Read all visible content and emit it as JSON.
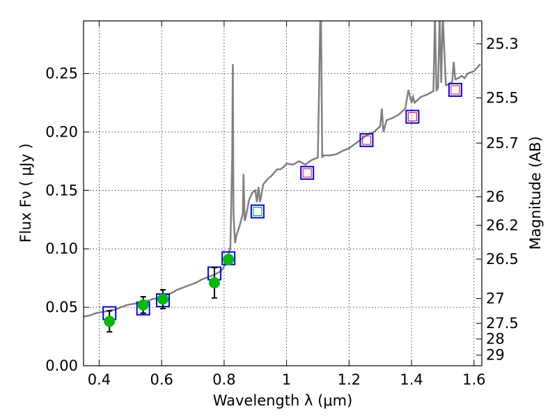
{
  "chart_data": {
    "type": "scatter",
    "xlabel": "Wavelength  λ (μm)",
    "ylabel": "Flux  Fν  ( μJy )",
    "ylabel_right": "Magnitude (AB)",
    "xlim": [
      0.35,
      1.625
    ],
    "ylim": [
      0.0,
      0.295
    ],
    "grid": true,
    "x_ticks": [
      0.4,
      0.6,
      0.8,
      1.0,
      1.2,
      1.4,
      1.6
    ],
    "x_tick_labels": [
      "0.4",
      "0.6",
      "0.8",
      "1",
      "1.2",
      "1.4",
      "1.6"
    ],
    "y_ticks": [
      0.0,
      0.05,
      0.1,
      0.15,
      0.2,
      0.25
    ],
    "y_tick_labels": [
      "0.00",
      "0.05",
      "0.10",
      "0.15",
      "0.20",
      "0.25"
    ],
    "right_ticks": [
      {
        "flux": 0.2754,
        "label": "25.3"
      },
      {
        "flux": 0.2291,
        "label": "25.5"
      },
      {
        "flux": 0.1905,
        "label": "25.7"
      },
      {
        "flux": 0.1445,
        "label": "26"
      },
      {
        "flux": 0.1202,
        "label": "26.2"
      },
      {
        "flux": 0.0912,
        "label": "26.5"
      },
      {
        "flux": 0.0575,
        "label": "27"
      },
      {
        "flux": 0.0363,
        "label": "27.5"
      },
      {
        "flux": 0.0229,
        "label": "28"
      },
      {
        "flux": 0.0091,
        "label": "29"
      }
    ],
    "series": [
      {
        "kind": "spectrum",
        "color": "#808080",
        "x": [
          0.35,
          0.37,
          0.39,
          0.41,
          0.43,
          0.45,
          0.47,
          0.49,
          0.51,
          0.53,
          0.55,
          0.57,
          0.59,
          0.61,
          0.63,
          0.65,
          0.67,
          0.69,
          0.71,
          0.73,
          0.75,
          0.77,
          0.79,
          0.8,
          0.81,
          0.82,
          0.826,
          0.828,
          0.83,
          0.835,
          0.84,
          0.85,
          0.86,
          0.862,
          0.866,
          0.87,
          0.88,
          0.89,
          0.9,
          0.905,
          0.91,
          0.915,
          0.925,
          0.94,
          0.95,
          0.96,
          0.97,
          0.98,
          0.99,
          1.0,
          1.02,
          1.04,
          1.06,
          1.08,
          1.1,
          1.108,
          1.11,
          1.114,
          1.118,
          1.122,
          1.14,
          1.16,
          1.18,
          1.2,
          1.22,
          1.24,
          1.26,
          1.28,
          1.3,
          1.305,
          1.31,
          1.32,
          1.34,
          1.36,
          1.38,
          1.39,
          1.4,
          1.405,
          1.41,
          1.43,
          1.45,
          1.47,
          1.475,
          1.48,
          1.485,
          1.49,
          1.495,
          1.5,
          1.51,
          1.52,
          1.53,
          1.535,
          1.54,
          1.55,
          1.56,
          1.57,
          1.58,
          1.6,
          1.62
        ],
        "y": [
          0.042,
          0.043,
          0.045,
          0.046,
          0.047,
          0.048,
          0.05,
          0.052,
          0.053,
          0.054,
          0.055,
          0.057,
          0.058,
          0.06,
          0.062,
          0.065,
          0.067,
          0.069,
          0.071,
          0.074,
          0.076,
          0.078,
          0.081,
          0.085,
          0.09,
          0.102,
          0.18,
          0.258,
          0.13,
          0.105,
          0.112,
          0.12,
          0.13,
          0.164,
          0.124,
          0.128,
          0.142,
          0.148,
          0.15,
          0.14,
          0.153,
          0.14,
          0.155,
          0.16,
          0.162,
          0.165,
          0.168,
          0.168,
          0.17,
          0.173,
          0.172,
          0.175,
          0.172,
          0.176,
          0.178,
          0.3,
          0.3,
          0.178,
          0.18,
          0.18,
          0.18,
          0.181,
          0.184,
          0.186,
          0.19,
          0.194,
          0.198,
          0.2,
          0.205,
          0.22,
          0.2,
          0.21,
          0.212,
          0.215,
          0.22,
          0.236,
          0.225,
          0.23,
          0.225,
          0.23,
          0.232,
          0.235,
          0.3,
          0.235,
          0.238,
          0.3,
          0.242,
          0.3,
          0.24,
          0.241,
          0.243,
          0.26,
          0.245,
          0.246,
          0.248,
          0.246,
          0.25,
          0.252,
          0.258
        ]
      },
      {
        "kind": "boxes",
        "marker": "open-square",
        "color": "#0000ff",
        "x": [
          0.433,
          0.541,
          0.604,
          0.769,
          0.814,
          0.907,
          1.066,
          1.256,
          1.403,
          1.54
        ],
        "values": [
          0.045,
          0.049,
          0.056,
          0.079,
          0.092,
          0.132,
          0.165,
          0.193,
          0.213,
          0.236
        ]
      },
      {
        "kind": "inner-boxes",
        "marker": "open-square-small",
        "x": [
          0.907,
          1.066,
          1.256,
          1.403,
          1.54
        ],
        "values": [
          0.132,
          0.165,
          0.193,
          0.213,
          0.236
        ],
        "colors": [
          "#00aa00",
          "#ff0000",
          "#ff0000",
          "#ff0000",
          "#ff0000"
        ]
      },
      {
        "kind": "observed",
        "marker": "filled-circle",
        "color": "#00bb00",
        "x": [
          0.433,
          0.541,
          0.604,
          0.769,
          0.814
        ],
        "values": [
          0.038,
          0.052,
          0.057,
          0.071,
          0.091
        ],
        "err": [
          0.009,
          0.007,
          0.008,
          0.013,
          0.0
        ]
      }
    ]
  }
}
